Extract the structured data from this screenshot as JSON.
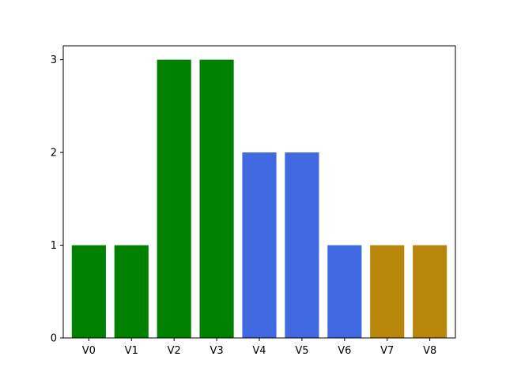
{
  "chart_data": {
    "type": "bar",
    "categories": [
      "V0",
      "V1",
      "V2",
      "V3",
      "V4",
      "V5",
      "V6",
      "V7",
      "V8"
    ],
    "values": [
      1,
      1,
      3,
      3,
      2,
      2,
      1,
      1,
      1
    ],
    "colors": [
      "#008000",
      "#008000",
      "#008000",
      "#008000",
      "#4169e1",
      "#4169e1",
      "#4169e1",
      "#b8860b",
      "#b8860b"
    ],
    "title": "",
    "xlabel": "",
    "ylabel": "",
    "ylim": [
      0,
      3.15
    ],
    "yticks": [
      "0",
      "1",
      "2",
      "3"
    ],
    "grid": false,
    "legend": "none"
  }
}
